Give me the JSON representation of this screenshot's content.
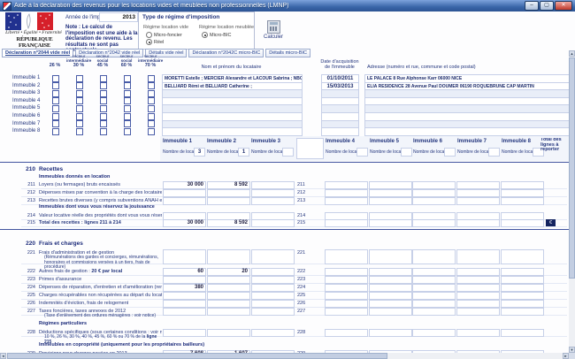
{
  "window": {
    "title": "Aide à la déclaration des revenus pour les locations vides et meublées non professionnelles (LMNP)",
    "controls": {
      "minimize": "–",
      "maximize": "▢",
      "close": "✕"
    }
  },
  "icons": {
    "up": "▲",
    "down": "▼",
    "left": "◄",
    "right": "►"
  },
  "colors": {
    "accent": "#23357d",
    "titlebar": "#3a66a8",
    "close_button": "#c0392b",
    "total_box": "#13235f"
  },
  "header": {
    "logo": {
      "motto": "Liberté • Égalité • Fraternité",
      "republic": "RÉPUBLIQUE FRANÇAISE"
    },
    "annee_label": "Année de l'imposition",
    "annee_value": "2013",
    "note": "Note : Le calcul de l'imposition est une aide à la déclaration de revenu. Les résultats ne sont pas contractuels.",
    "regime": {
      "title": "Type de régime d'imposition",
      "vide_label": "Régime location vide",
      "vide_options": [
        {
          "label": "Micro-foncier",
          "selected": false
        },
        {
          "label": "Réel",
          "selected": true
        }
      ],
      "meuble_label": "Régime location meublée",
      "meuble_options": [
        {
          "label": "Micro-BIC",
          "selected": true
        }
      ]
    },
    "calc_label": "Calculer"
  },
  "tabs": [
    {
      "label": "Déclaration n°2044 vide réel",
      "active": true
    },
    {
      "label": "Déclaration n°2042 vide réel",
      "active": false
    },
    {
      "label": "Détails vide réel",
      "active": false
    },
    {
      "label": "Déclaration n°2042C micro-BIC",
      "active": false
    },
    {
      "label": "Détails micro-BIC",
      "active": false
    }
  ],
  "grid": {
    "columns": [
      {
        "sector": "",
        "type": "",
        "pct": "26 %"
      },
      {
        "sector": "secteur",
        "type": "intermédiaire",
        "pct": "30 %"
      },
      {
        "sector": "secteur",
        "type": "social",
        "pct": "45 %"
      },
      {
        "sector": "secteur",
        "type": "social",
        "pct": "60 %"
      },
      {
        "sector": "secteur",
        "type": "intermédiaire",
        "pct": "70 %"
      }
    ]
  },
  "tenants": {
    "nom_header": "Nom et prénom du locataire",
    "date_header_l1": "Date d'acquisition",
    "date_header_l2": "de l'immeuble",
    "adresse_header": "Adresse (numéro et rue, commune et code postal)",
    "rows": [
      {
        "nom": "MORETTI Estelle ; MERCIER Alexandre et LACOUR Sabrina ; NBOGO Blaise ;",
        "date": "01/10/2011",
        "adresse": "LE PALACE 8 Rue Alphonse Karr 06000 NICE"
      },
      {
        "nom": "BELLIARD Rémi et BELLIARD Catherine ;",
        "date": "15/03/2013",
        "adresse": "ELIA RESIDENCE 28 Avenue Paul DOUMER 06190 ROQUEBRUNE CAP MARTIN"
      },
      {
        "nom": "",
        "date": "",
        "adresse": ""
      },
      {
        "nom": "",
        "date": "",
        "adresse": ""
      },
      {
        "nom": "",
        "date": "",
        "adresse": ""
      },
      {
        "nom": "",
        "date": "",
        "adresse": ""
      },
      {
        "nom": "",
        "date": "",
        "adresse": ""
      },
      {
        "nom": "",
        "date": "",
        "adresse": ""
      }
    ]
  },
  "immeubles": {
    "labels": [
      "Immeuble 1",
      "Immeuble 2",
      "Immeuble 3",
      "Immeuble 4",
      "Immeuble 5",
      "Immeuble 6",
      "Immeuble 7",
      "Immeuble 8"
    ],
    "locaux_label": "Nombre de locaux",
    "locaux_values": [
      "3",
      "1",
      "",
      "",
      "",
      "",
      "",
      ""
    ],
    "total_header": "Total des lignes à reporter par immeuble",
    "total_symbol": "€"
  },
  "recettes": {
    "num": "210",
    "title": "Recettes",
    "rows": [
      {
        "type": "subheader",
        "label": "Immeubles donnés en location"
      },
      {
        "type": "row",
        "num": "211",
        "label": "Loyers (ou fermages) bruts encaissés",
        "values": [
          "30 000",
          "8 592",
          "",
          "",
          "",
          "",
          "",
          ""
        ]
      },
      {
        "type": "row",
        "num": "212",
        "label": "Dépenses mises par convention à la charge des locataires",
        "values": [
          "",
          "",
          "",
          "",
          "",
          "",
          "",
          ""
        ]
      },
      {
        "type": "row",
        "num": "213",
        "label": "Recettes brutes diverses (y compris subventions ANAH et indemnités d'assurance)",
        "values": [
          "",
          "",
          "",
          "",
          "",
          "",
          "",
          ""
        ]
      },
      {
        "type": "subheader",
        "label": "Immeubles dont vous vous réservez la jouissance"
      },
      {
        "type": "row",
        "num": "214",
        "label": "Valeur locative réelle des propriétés dont vous vous réservez la jouissance",
        "values": [
          "",
          "",
          "",
          "",
          "",
          "",
          "",
          ""
        ]
      },
      {
        "type": "total",
        "num": "215",
        "label": "Total des recettes : lignes 211 à 214",
        "values": [
          "30 000",
          "8 592",
          "",
          "",
          "",
          "",
          "",
          ""
        ]
      }
    ]
  },
  "frais": {
    "num": "220",
    "title": "Frais et charges",
    "rows": [
      {
        "type": "row",
        "num": "221",
        "label": "Frais d'administration et de gestion",
        "sub": "(Rémunérations des gardes et concierges, rémunérations, honoraires et commissions versées à un tiers, frais de procédure)",
        "values": [
          "",
          "",
          "",
          "",
          "",
          "",
          "",
          ""
        ]
      },
      {
        "type": "row",
        "num": "222",
        "label": "Autres frais de gestion : ",
        "label_bold": "20 € par local",
        "values": [
          "60",
          "20",
          "",
          "",
          "",
          "",
          "",
          ""
        ]
      },
      {
        "type": "row",
        "num": "223",
        "label": "Primes d'assurance",
        "values": [
          "",
          "",
          "",
          "",
          "",
          "",
          "",
          ""
        ]
      },
      {
        "type": "row",
        "num": "224",
        "label": "Dépenses de réparation, d'entretien et d'amélioration (remplir également la rubrique 400)",
        "values": [
          "380",
          "",
          "",
          "",
          "",
          "",
          "",
          ""
        ]
      },
      {
        "type": "row",
        "num": "225",
        "label": "Charges récupérables non récupérées au départ du locataire",
        "values": [
          "",
          "",
          "",
          "",
          "",
          "",
          "",
          ""
        ]
      },
      {
        "type": "row",
        "num": "226",
        "label": "Indemnités d'éviction, frais de relogement",
        "values": [
          "",
          "",
          "",
          "",
          "",
          "",
          "",
          ""
        ]
      },
      {
        "type": "row",
        "num": "227",
        "label": "Taxes foncières, taxes annexes de 2012",
        "sub": "(Taxe d'enlèvement des ordures ménagères : voir notice)",
        "values": [
          "",
          "",
          "",
          "",
          "",
          "",
          "",
          ""
        ]
      },
      {
        "type": "subheader",
        "label": "Régimes particuliers"
      },
      {
        "type": "row",
        "num": "228",
        "label": "Déductions spécifiques (sous certaines conditions : voir notice)",
        "sub": "10 %, 26 %, 30 %, 40 %, 45 %, 60 % ou 70 % de la ",
        "sub_bold": "ligne 215",
        "values": [
          "",
          "",
          "",
          "",
          "",
          "",
          "",
          ""
        ]
      },
      {
        "type": "subheader",
        "label": "Immeubles en copropriété (uniquement pour les propriétaires bailleurs)"
      },
      {
        "type": "row",
        "num": "229",
        "label": "Provisions pour charges payées en 2013",
        "values": [
          "7 608",
          "1 607",
          "",
          "",
          "",
          "",
          "",
          ""
        ]
      }
    ]
  }
}
